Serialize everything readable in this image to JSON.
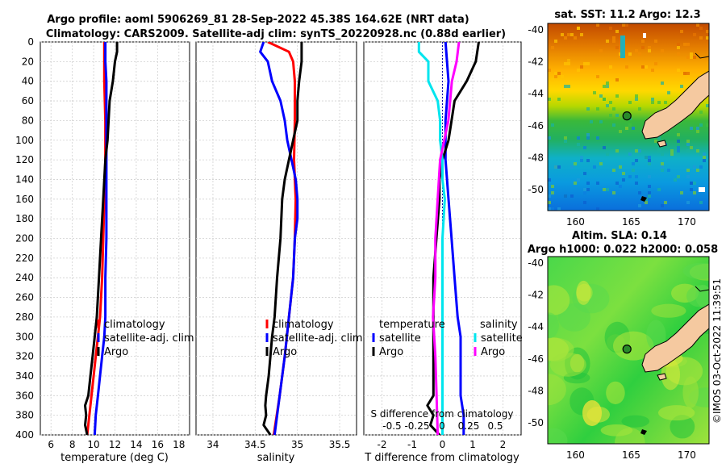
{
  "title_line1": "Argo profile: aoml 5906269_81 28-Sep-2022 45.38S 164.62E (NRT data)",
  "title_line2": "Climatology: CARS2009. Satellite-adj clim: synTS_20220928.nc (0.88d earlier)",
  "watermark": "©IMOS 03-Oct-2022 11:39:51",
  "colors": {
    "clim": "#ff0000",
    "sat": "#0000ff",
    "argo": "#000000",
    "clim_sal": "#00e5ee",
    "sat_sal": "#ff00ff",
    "coast_fill": "#f5c9a0"
  },
  "chart_data": [
    {
      "id": "temperature",
      "type": "line",
      "xlabel": "temperature (deg C)",
      "ylabel": "",
      "xlim": [
        5,
        19
      ],
      "xticks": [
        6,
        8,
        10,
        12,
        14,
        16,
        18
      ],
      "ylim": [
        400,
        0
      ],
      "yticks": [
        0,
        20,
        40,
        60,
        80,
        100,
        120,
        140,
        160,
        180,
        200,
        220,
        240,
        260,
        280,
        300,
        320,
        340,
        360,
        380,
        400
      ],
      "legend": [
        "climatology",
        "satellite-adj. clim",
        "Argo"
      ],
      "legend_position": "lower-right",
      "series": [
        {
          "name": "climatology",
          "color": "#ff0000",
          "depth": [
            0,
            20,
            40,
            80,
            120,
            160,
            200,
            240,
            280,
            300,
            320,
            340,
            360,
            380,
            400
          ],
          "values": [
            11.0,
            11.0,
            11.0,
            11.1,
            11.1,
            11.0,
            10.9,
            10.8,
            10.6,
            10.4,
            10.2,
            10.0,
            9.8,
            9.6,
            9.4
          ]
        },
        {
          "name": "satellite-adj. clim",
          "color": "#0000ff",
          "depth": [
            0,
            20,
            40,
            80,
            120,
            160,
            200,
            240,
            280,
            300,
            320,
            340,
            360,
            380,
            400
          ],
          "values": [
            11.1,
            11.1,
            11.2,
            11.2,
            11.2,
            11.2,
            11.2,
            11.1,
            11.1,
            11.0,
            10.8,
            10.6,
            10.4,
            10.2,
            10.1
          ]
        },
        {
          "name": "Argo",
          "color": "#000000",
          "depth": [
            0,
            10,
            20,
            40,
            60,
            80,
            100,
            120,
            140,
            160,
            200,
            240,
            280,
            300,
            320,
            340,
            360,
            370,
            380,
            390,
            400
          ],
          "values": [
            12.2,
            12.2,
            12.0,
            11.8,
            11.5,
            11.4,
            11.3,
            11.1,
            11.0,
            10.9,
            10.7,
            10.5,
            10.3,
            10.1,
            9.9,
            9.7,
            9.5,
            9.2,
            9.3,
            9.2,
            9.4
          ]
        }
      ]
    },
    {
      "id": "salinity",
      "type": "line",
      "xlabel": "salinity",
      "ylabel": "",
      "xlim": [
        33.8,
        35.7
      ],
      "xticks": [
        34,
        34.5,
        35,
        35.5
      ],
      "ylim": [
        400,
        0
      ],
      "legend": [
        "climatology",
        "satellite-adj. clim",
        "Argo"
      ],
      "legend_position": "lower-right",
      "series": [
        {
          "name": "climatology",
          "color": "#ff0000",
          "depth": [
            0,
            10,
            20,
            40,
            80,
            120,
            160,
            200,
            240,
            280,
            320,
            360,
            400
          ],
          "values": [
            34.65,
            34.9,
            34.95,
            34.97,
            34.97,
            34.96,
            34.98,
            34.97,
            34.95,
            34.9,
            34.85,
            34.79,
            34.72
          ]
        },
        {
          "name": "satellite-adj. clim",
          "color": "#0000ff",
          "depth": [
            0,
            10,
            20,
            40,
            60,
            80,
            100,
            120,
            140,
            160,
            180,
            200,
            240,
            280,
            320,
            360,
            400
          ],
          "values": [
            34.6,
            34.56,
            34.65,
            34.7,
            34.8,
            34.85,
            34.88,
            34.93,
            34.98,
            35.0,
            35.0,
            34.97,
            34.95,
            34.9,
            34.85,
            34.79,
            34.73
          ]
        },
        {
          "name": "Argo",
          "color": "#000000",
          "depth": [
            0,
            20,
            40,
            60,
            80,
            100,
            120,
            140,
            160,
            200,
            240,
            280,
            300,
            320,
            340,
            360,
            370,
            380,
            390,
            400
          ],
          "values": [
            35.05,
            35.05,
            35.02,
            35.0,
            35.0,
            34.95,
            34.9,
            34.85,
            34.82,
            34.8,
            34.76,
            34.73,
            34.7,
            34.68,
            34.66,
            34.63,
            34.62,
            34.63,
            34.6,
            34.68
          ]
        }
      ]
    },
    {
      "id": "differences",
      "type": "line",
      "xlabel": "T difference from climatology",
      "x2label": "S difference from climatology",
      "xlim": [
        -2.6,
        2.6
      ],
      "xticks": [
        -2,
        -1,
        0,
        1,
        2
      ],
      "x2ticks": [
        "-0.5",
        "-0.25",
        "0",
        "0.25",
        "0.5"
      ],
      "ylim": [
        400,
        0
      ],
      "legend_groups": [
        {
          "heading": "temperature",
          "entries": [
            "satellite",
            "Argo"
          ]
        },
        {
          "heading": "salinity",
          "entries": [
            "satellite",
            "Argo"
          ]
        }
      ],
      "legend_position": "lower-center",
      "series": [
        {
          "name": "T satellite",
          "color": "#0000ff",
          "depth": [
            0,
            40,
            80,
            120,
            160,
            200,
            240,
            280,
            300,
            320,
            340,
            360,
            380,
            400
          ],
          "values": [
            0.1,
            0.2,
            0.1,
            0.1,
            0.2,
            0.3,
            0.4,
            0.5,
            0.6,
            0.6,
            0.6,
            0.6,
            0.7,
            0.7
          ]
        },
        {
          "name": "T Argo",
          "color": "#000000",
          "depth": [
            0,
            20,
            40,
            60,
            80,
            100,
            120,
            140,
            160,
            200,
            240,
            280,
            300,
            320,
            340,
            360,
            370,
            380,
            390,
            400
          ],
          "values": [
            1.2,
            1.1,
            0.8,
            0.4,
            0.3,
            0.2,
            0.0,
            -0.1,
            -0.1,
            -0.2,
            -0.3,
            -0.3,
            -0.3,
            -0.3,
            -0.3,
            -0.3,
            -0.5,
            -0.3,
            -0.4,
            -0.1
          ]
        },
        {
          "name": "S satellite",
          "color": "#00e5ee",
          "depth": [
            0,
            10,
            20,
            40,
            60,
            80,
            100,
            120,
            140,
            160,
            200,
            240,
            280,
            320,
            360,
            400
          ],
          "values": [
            -0.2,
            -0.2,
            -0.12,
            -0.12,
            -0.04,
            -0.02,
            -0.02,
            0.0,
            0.0,
            0.02,
            0.0,
            0.0,
            0.0,
            0.0,
            0.0,
            0.0
          ]
        },
        {
          "name": "S Argo",
          "color": "#ff00ff",
          "depth": [
            0,
            20,
            40,
            80,
            120,
            160,
            200,
            240,
            280,
            320,
            360,
            400
          ],
          "values": [
            0.14,
            0.12,
            0.08,
            0.05,
            -0.02,
            -0.04,
            -0.06,
            -0.06,
            -0.08,
            -0.06,
            -0.05,
            -0.04
          ]
        }
      ]
    },
    {
      "id": "sst_map",
      "type": "heatmap",
      "title": "sat. SST: 11.2 Argo: 12.3",
      "xticks": [
        160,
        165,
        170
      ],
      "yticks": [
        -40,
        -42,
        -44,
        -46,
        -48,
        -50
      ],
      "xlim": [
        157.5,
        172
      ],
      "ylim": [
        -51.3,
        -39.6
      ],
      "argo_position": [
        164.62,
        -45.38
      ]
    },
    {
      "id": "sla_map",
      "type": "heatmap",
      "title_line1": "Altim. SLA: 0.14",
      "title_line2": "Argo h1000: 0.022 h2000: 0.058",
      "xticks": [
        160,
        165,
        170
      ],
      "yticks": [
        -40,
        -42,
        -44,
        -46,
        -48,
        -50
      ],
      "xlim": [
        157.5,
        172
      ],
      "ylim": [
        -51.3,
        -39.6
      ],
      "argo_position": [
        164.62,
        -45.38
      ]
    }
  ]
}
